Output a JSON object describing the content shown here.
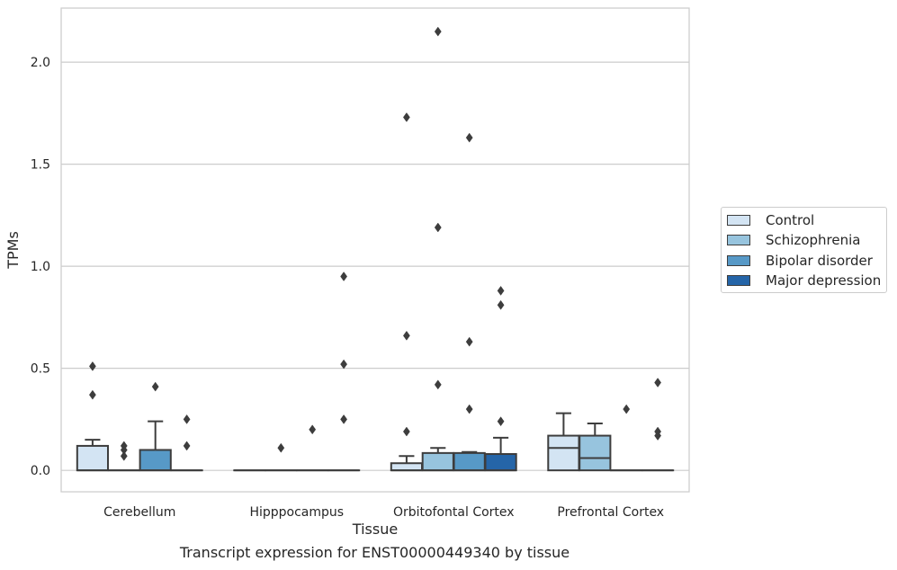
{
  "chart_data": {
    "type": "boxplot",
    "title": "",
    "xlabel": "Tissue",
    "ylabel": "TPMs",
    "caption": "Transcript expression for ENST00000449340 by tissue",
    "ylim": [
      -0.105,
      2.265
    ],
    "yticks": [
      0.0,
      0.5,
      1.0,
      1.5,
      2.0
    ],
    "ytick_labels": [
      "0.0",
      "0.5",
      "1.0",
      "1.5",
      "2.0"
    ],
    "grid": "horizontal",
    "legend_position": "right",
    "categories": [
      "Cerebellum",
      "Hipppocampus",
      "Orbitofontal Cortex",
      "Prefrontal Cortex"
    ],
    "series": [
      {
        "name": "Control",
        "color": "#d3e4f3",
        "boxes": [
          {
            "q1": 0.0,
            "median": 0.0,
            "q3": 0.12,
            "whislo": 0.0,
            "whishi": 0.15,
            "fliers": [
              0.37,
              0.51
            ]
          },
          {
            "q1": 0.0,
            "median": 0.0,
            "q3": 0.0,
            "whislo": 0.0,
            "whishi": 0.0,
            "fliers": []
          },
          {
            "q1": 0.0,
            "median": 0.0,
            "q3": 0.035,
            "whislo": 0.0,
            "whishi": 0.07,
            "fliers": [
              0.19,
              0.66,
              1.73
            ]
          },
          {
            "q1": 0.0,
            "median": 0.11,
            "q3": 0.17,
            "whislo": 0.0,
            "whishi": 0.28,
            "fliers": []
          }
        ]
      },
      {
        "name": "Schizophrenia",
        "color": "#97c4de",
        "boxes": [
          {
            "q1": 0.0,
            "median": 0.0,
            "q3": 0.0,
            "whislo": 0.0,
            "whishi": 0.0,
            "fliers": [
              0.07,
              0.1,
              0.12
            ]
          },
          {
            "q1": 0.0,
            "median": 0.0,
            "q3": 0.0,
            "whislo": 0.0,
            "whishi": 0.0,
            "fliers": [
              0.11
            ]
          },
          {
            "q1": 0.0,
            "median": 0.0,
            "q3": 0.085,
            "whislo": 0.0,
            "whishi": 0.11,
            "fliers": [
              0.42,
              1.19,
              2.15
            ]
          },
          {
            "q1": 0.0,
            "median": 0.06,
            "q3": 0.17,
            "whislo": 0.0,
            "whishi": 0.23,
            "fliers": []
          }
        ]
      },
      {
        "name": "Bipolar disorder",
        "color": "#5799c7",
        "boxes": [
          {
            "q1": 0.0,
            "median": 0.0,
            "q3": 0.1,
            "whislo": 0.0,
            "whishi": 0.24,
            "fliers": [
              0.41
            ]
          },
          {
            "q1": 0.0,
            "median": 0.0,
            "q3": 0.0,
            "whislo": 0.0,
            "whishi": 0.0,
            "fliers": [
              0.2
            ]
          },
          {
            "q1": 0.0,
            "median": 0.0,
            "q3": 0.085,
            "whislo": 0.0,
            "whishi": 0.09,
            "fliers": [
              0.3,
              0.63,
              1.63
            ]
          },
          {
            "q1": 0.0,
            "median": 0.0,
            "q3": 0.0,
            "whislo": 0.0,
            "whishi": 0.0,
            "fliers": [
              0.3
            ]
          }
        ]
      },
      {
        "name": "Major depression",
        "color": "#2565a8",
        "boxes": [
          {
            "q1": 0.0,
            "median": 0.0,
            "q3": 0.0,
            "whislo": 0.0,
            "whishi": 0.0,
            "fliers": [
              0.12,
              0.25
            ]
          },
          {
            "q1": 0.0,
            "median": 0.0,
            "q3": 0.0,
            "whislo": 0.0,
            "whishi": 0.0,
            "fliers": [
              0.25,
              0.52,
              0.95
            ]
          },
          {
            "q1": 0.0,
            "median": 0.0,
            "q3": 0.08,
            "whislo": 0.0,
            "whishi": 0.16,
            "fliers": [
              0.24,
              0.81,
              0.88
            ]
          },
          {
            "q1": 0.0,
            "median": 0.0,
            "q3": 0.0,
            "whislo": 0.0,
            "whishi": 0.0,
            "fliers": [
              0.17,
              0.19,
              0.43
            ]
          }
        ]
      }
    ]
  }
}
